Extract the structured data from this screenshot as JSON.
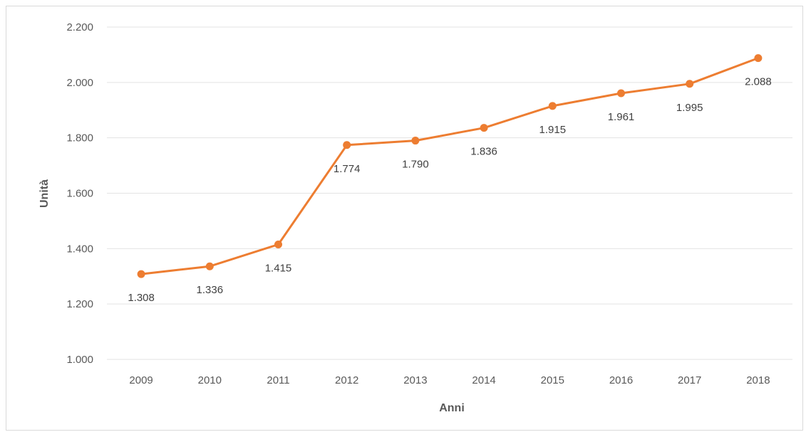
{
  "chart_data": {
    "type": "line",
    "title": "",
    "xlabel": "Anni",
    "ylabel": "Unità",
    "categories": [
      "2009",
      "2010",
      "2011",
      "2012",
      "2013",
      "2014",
      "2015",
      "2016",
      "2017",
      "2018"
    ],
    "series": [
      {
        "values": [
          1308,
          1336,
          1415,
          1774,
          1790,
          1836,
          1915,
          1961,
          1995,
          2088
        ],
        "labels": [
          "1.308",
          "1.336",
          "1.415",
          "1.774",
          "1.790",
          "1.836",
          "1.915",
          "1.961",
          "1.995",
          "2.088"
        ],
        "color": "#ed7d31"
      }
    ],
    "ylim": [
      1000,
      2200
    ],
    "yticks": [
      1000,
      1200,
      1400,
      1600,
      1800,
      2000,
      2200
    ],
    "ytick_labels": [
      "1.000",
      "1.200",
      "1.400",
      "1.600",
      "1.800",
      "2.000",
      "2.200"
    ],
    "grid": true,
    "legend": "none"
  }
}
